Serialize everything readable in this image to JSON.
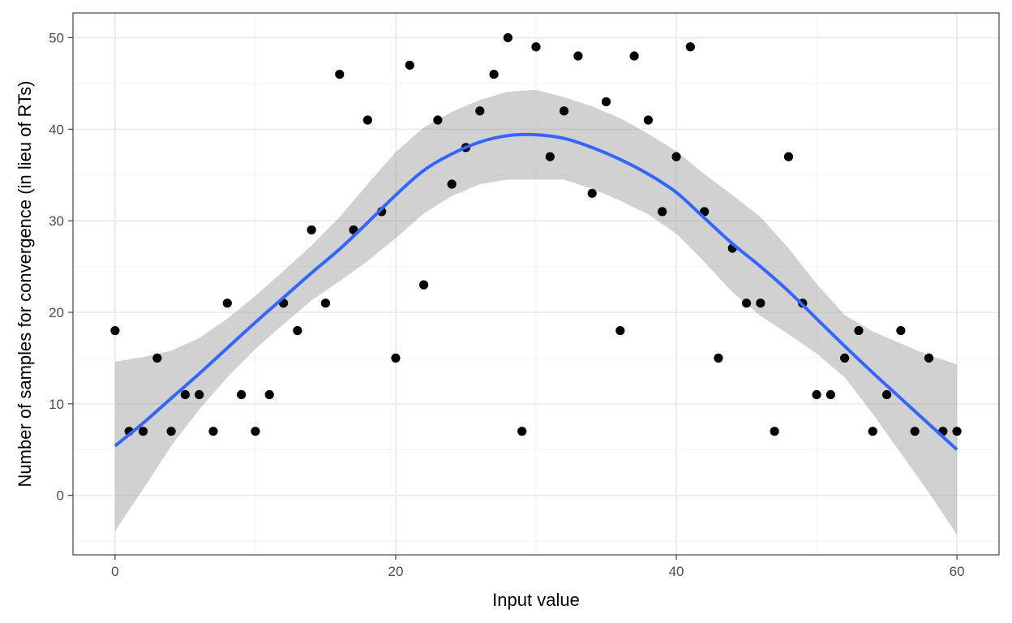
{
  "chart_data": {
    "type": "scatter",
    "title": "",
    "xlabel": "Input value",
    "ylabel": "Number of samples for convergence (in lieu of RTs)",
    "xlim": [
      -3,
      63
    ],
    "ylim": [
      -6.5,
      52.7
    ],
    "x_ticks": [
      0,
      20,
      40,
      60
    ],
    "y_ticks": [
      0,
      10,
      20,
      30,
      40,
      50
    ],
    "x_tick_labels": [
      "0",
      "20",
      "40",
      "60"
    ],
    "y_tick_labels": [
      "0",
      "10",
      "20",
      "30",
      "40",
      "50"
    ],
    "grid": true,
    "legend": "none",
    "series": [
      {
        "type": "scatter",
        "x": [
          0,
          1,
          2,
          3,
          4,
          5,
          6,
          7,
          8,
          9,
          10,
          11,
          12,
          13,
          14,
          15,
          16,
          17,
          18,
          19,
          20,
          21,
          22,
          23,
          24,
          25,
          26,
          27,
          28,
          29,
          30,
          31,
          32,
          33,
          34,
          35,
          36,
          37,
          38,
          39,
          40,
          41,
          42,
          43,
          44,
          45,
          46,
          47,
          48,
          49,
          50,
          51,
          52,
          53,
          54,
          55,
          56,
          57,
          58,
          59,
          60
        ],
        "y": [
          18,
          7,
          7,
          15,
          7,
          11,
          11,
          7,
          21,
          11,
          7,
          11,
          21,
          18,
          29,
          21,
          46,
          29,
          41,
          31,
          15,
          47,
          23,
          41,
          34,
          38,
          42,
          46,
          50,
          7,
          49,
          37,
          42,
          48,
          33,
          43,
          18,
          48,
          41,
          31,
          37,
          49,
          31,
          15,
          27,
          21,
          21,
          7,
          37,
          21,
          11,
          11,
          15,
          18,
          7,
          11,
          18,
          7,
          15,
          7,
          7
        ]
      },
      {
        "type": "smooth",
        "x": [
          0,
          2,
          4,
          6,
          8,
          10,
          12,
          14,
          16,
          18,
          20,
          22,
          24,
          26,
          28,
          30,
          32,
          34,
          36,
          38,
          40,
          42,
          44,
          46,
          48,
          50,
          52,
          54,
          56,
          58,
          60
        ],
        "y": [
          5.4,
          7.9,
          10.6,
          13.3,
          16.1,
          18.9,
          21.6,
          24.3,
          26.9,
          29.8,
          32.8,
          35.5,
          37.3,
          38.6,
          39.3,
          39.4,
          39.0,
          38.0,
          36.7,
          35.1,
          33.1,
          30.3,
          27.5,
          25.0,
          22.3,
          19.3,
          16.3,
          13.4,
          10.6,
          7.8,
          5.0
        ],
        "ci_lower": [
          -3.9,
          0.7,
          5.4,
          9.4,
          12.9,
          16.0,
          18.7,
          21.3,
          23.4,
          25.6,
          28.1,
          30.8,
          32.7,
          34.0,
          34.5,
          34.5,
          34.5,
          33.5,
          32.2,
          30.7,
          28.6,
          25.5,
          22.2,
          19.6,
          17.6,
          15.5,
          12.9,
          8.9,
          4.6,
          0.3,
          -4.3
        ],
        "ci_upper": [
          14.6,
          15.1,
          15.8,
          17.2,
          19.3,
          21.8,
          24.5,
          27.3,
          30.4,
          34.0,
          37.5,
          40.2,
          41.9,
          43.2,
          44.1,
          44.3,
          43.5,
          42.5,
          41.2,
          39.5,
          37.6,
          35.1,
          32.8,
          30.4,
          27.0,
          23.1,
          19.7,
          17.9,
          16.6,
          15.3,
          14.3
        ],
        "color": "#3366FF",
        "ribbon_color": "#999999"
      }
    ],
    "point_color": "#000000"
  }
}
